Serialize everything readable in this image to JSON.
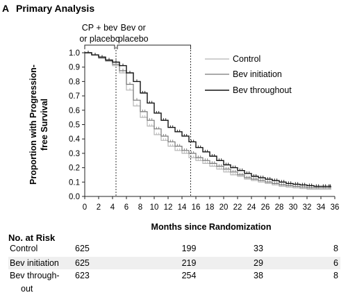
{
  "panel": {
    "letter": "A",
    "title": "Primary Analysis"
  },
  "phases": [
    {
      "line1": "CP + bev",
      "line2": "or placebo",
      "start": 0,
      "end": 4.5
    },
    {
      "line1": "Bev or",
      "line2": "placebo",
      "start": 4.5,
      "end": 15.25
    }
  ],
  "colors": {
    "control": "#b5b5b5",
    "initiation": "#777777",
    "throughout": "#111111"
  },
  "chart_data": {
    "type": "line",
    "subtype": "kaplan-meier",
    "xlabel": "Months since Randomization",
    "ylabel": "Proportion with Progression-free Survival",
    "xlim": [
      0,
      36
    ],
    "ylim": [
      0,
      1.0
    ],
    "xticks": [
      "0",
      "2",
      "4",
      "6",
      "8",
      "10",
      "12",
      "14",
      "16",
      "18",
      "20",
      "22",
      "24",
      "26",
      "28",
      "30",
      "32",
      "34",
      "36"
    ],
    "yticks": [
      "0.0",
      "0.1",
      "0.2",
      "0.3",
      "0.4",
      "0.5",
      "0.6",
      "0.7",
      "0.8",
      "0.9",
      "1.0"
    ],
    "vlines": [
      4.5,
      15.25
    ],
    "legend": {
      "position": "top-right"
    },
    "series": [
      {
        "name": "Control",
        "key": "control",
        "x": [
          0,
          1,
          2,
          3,
          4,
          5,
          6,
          7,
          8,
          9,
          10,
          11,
          12,
          13,
          14,
          15,
          16,
          17,
          18,
          19,
          20,
          21,
          22,
          23,
          24,
          25,
          26,
          27,
          28,
          29,
          30,
          31,
          32,
          33,
          34,
          35,
          35.5
        ],
        "y": [
          1.0,
          0.985,
          0.96,
          0.94,
          0.91,
          0.86,
          0.74,
          0.63,
          0.55,
          0.49,
          0.43,
          0.39,
          0.35,
          0.32,
          0.3,
          0.27,
          0.25,
          0.23,
          0.21,
          0.19,
          0.17,
          0.15,
          0.14,
          0.12,
          0.11,
          0.1,
          0.09,
          0.08,
          0.07,
          0.065,
          0.06,
          0.055,
          0.05,
          0.05,
          0.05,
          0.05,
          0.05
        ]
      },
      {
        "name": "Bev initiation",
        "key": "initiation",
        "x": [
          0,
          1,
          2,
          3,
          4,
          5,
          6,
          7,
          8,
          9,
          10,
          11,
          12,
          13,
          14,
          15,
          16,
          17,
          18,
          19,
          20,
          21,
          22,
          23,
          24,
          25,
          26,
          27,
          28,
          29,
          30,
          31,
          32,
          33,
          34,
          35,
          35.5
        ],
        "y": [
          1.0,
          0.985,
          0.965,
          0.945,
          0.92,
          0.875,
          0.78,
          0.67,
          0.59,
          0.53,
          0.47,
          0.42,
          0.38,
          0.35,
          0.32,
          0.3,
          0.27,
          0.25,
          0.23,
          0.21,
          0.19,
          0.17,
          0.15,
          0.13,
          0.12,
          0.11,
          0.1,
          0.09,
          0.08,
          0.075,
          0.07,
          0.065,
          0.06,
          0.06,
          0.06,
          0.06,
          0.06
        ]
      },
      {
        "name": "Bev throughout",
        "key": "throughout",
        "x": [
          0,
          1,
          2,
          3,
          4,
          5,
          6,
          7,
          8,
          9,
          10,
          11,
          12,
          13,
          14,
          15,
          16,
          17,
          18,
          19,
          20,
          21,
          22,
          23,
          24,
          25,
          26,
          27,
          28,
          29,
          30,
          31,
          32,
          33,
          34,
          35,
          35.5
        ],
        "y": [
          1.0,
          0.985,
          0.97,
          0.95,
          0.935,
          0.91,
          0.86,
          0.8,
          0.72,
          0.65,
          0.58,
          0.53,
          0.48,
          0.45,
          0.42,
          0.38,
          0.34,
          0.31,
          0.28,
          0.25,
          0.22,
          0.2,
          0.18,
          0.16,
          0.14,
          0.13,
          0.12,
          0.11,
          0.1,
          0.09,
          0.085,
          0.08,
          0.075,
          0.07,
          0.07,
          0.07,
          0.07
        ]
      }
    ]
  },
  "risk_table": {
    "heading": "No. at Risk",
    "times": [
      0,
      15,
      25,
      36
    ],
    "rows": [
      {
        "label1": "Control",
        "label2": "",
        "values": [
          "625",
          "199",
          "33",
          "8"
        ]
      },
      {
        "label1": "Bev initiation",
        "label2": "",
        "values": [
          "625",
          "219",
          "29",
          "6"
        ]
      },
      {
        "label1": "Bev through-",
        "label2": "out",
        "values": [
          "623",
          "254",
          "38",
          "8"
        ]
      }
    ]
  }
}
